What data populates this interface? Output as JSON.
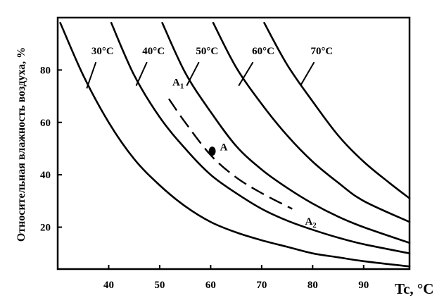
{
  "chart_data": {
    "type": "line",
    "title": "",
    "xlabel": "Tc, °C",
    "ylabel": "Относительная влажность воздуха, %",
    "xlim": [
      30,
      99
    ],
    "ylim": [
      4,
      100
    ],
    "x_ticks": [
      40,
      50,
      60,
      70,
      80,
      90
    ],
    "y_ticks": [
      20,
      40,
      60,
      80
    ],
    "grid": false,
    "series": [
      {
        "name": "30°C",
        "points": [
          [
            30.5,
            98
          ],
          [
            35,
            78
          ],
          [
            40,
            60
          ],
          [
            45,
            46
          ],
          [
            50,
            36
          ],
          [
            55,
            28
          ],
          [
            60,
            22
          ],
          [
            65,
            18
          ],
          [
            70,
            15
          ],
          [
            75,
            12.5
          ],
          [
            80,
            10
          ],
          [
            85,
            8.5
          ],
          [
            90,
            7
          ],
          [
            99,
            5
          ]
        ]
      },
      {
        "name": "40°C",
        "points": [
          [
            40.5,
            98
          ],
          [
            45,
            78
          ],
          [
            50,
            62
          ],
          [
            55,
            50
          ],
          [
            60,
            40
          ],
          [
            65,
            33
          ],
          [
            70,
            27
          ],
          [
            75,
            22.5
          ],
          [
            80,
            19
          ],
          [
            85,
            16
          ],
          [
            90,
            13.5
          ],
          [
            99,
            10
          ]
        ]
      },
      {
        "name": "50°C",
        "points": [
          [
            50.5,
            98
          ],
          [
            55,
            79
          ],
          [
            60,
            64
          ],
          [
            65,
            51
          ],
          [
            70,
            42
          ],
          [
            75,
            35
          ],
          [
            80,
            29
          ],
          [
            85,
            24
          ],
          [
            90,
            20
          ],
          [
            99,
            14
          ]
        ]
      },
      {
        "name": "60°C",
        "points": [
          [
            60.5,
            98
          ],
          [
            65,
            81
          ],
          [
            70,
            67
          ],
          [
            75,
            55
          ],
          [
            80,
            45
          ],
          [
            85,
            37
          ],
          [
            90,
            30
          ],
          [
            99,
            22
          ]
        ]
      },
      {
        "name": "70°C",
        "points": [
          [
            70.5,
            98
          ],
          [
            75,
            82
          ],
          [
            80,
            68
          ],
          [
            85,
            55
          ],
          [
            90,
            45
          ],
          [
            95,
            37
          ],
          [
            99,
            31
          ]
        ]
      }
    ],
    "curve_labels": [
      {
        "text": "30°C",
        "x": 38.8,
        "y": 86,
        "leader": [
          [
            37.5,
            83
          ],
          [
            35.7,
            73
          ]
        ]
      },
      {
        "text": "40°C",
        "x": 48.8,
        "y": 86,
        "leader": [
          [
            47.5,
            83
          ],
          [
            45.4,
            74
          ]
        ]
      },
      {
        "text": "50°C",
        "x": 59.3,
        "y": 86,
        "leader": [
          [
            57.7,
            83
          ],
          [
            55.3,
            74
          ]
        ]
      },
      {
        "text": "60°C",
        "x": 70.3,
        "y": 86,
        "leader": [
          [
            68.3,
            83
          ],
          [
            65.5,
            74
          ]
        ]
      },
      {
        "text": "70°C",
        "x": 81.8,
        "y": 86,
        "leader": [
          [
            80.3,
            83
          ],
          [
            77.6,
            74
          ]
        ]
      }
    ],
    "dashed_path": [
      [
        51.8,
        69
      ],
      [
        55,
        60
      ],
      [
        60,
        47.5
      ],
      [
        65,
        39
      ],
      [
        70,
        33
      ],
      [
        76,
        27
      ]
    ],
    "annotations": [
      {
        "name": "A",
        "marker": true,
        "x": 60.3,
        "y": 49
      },
      {
        "name": "A1",
        "base": "A",
        "sub": "1",
        "x": 52.5,
        "y": 74
      },
      {
        "name": "A2",
        "base": "A",
        "sub": "2",
        "x": 78.5,
        "y": 21
      }
    ]
  }
}
